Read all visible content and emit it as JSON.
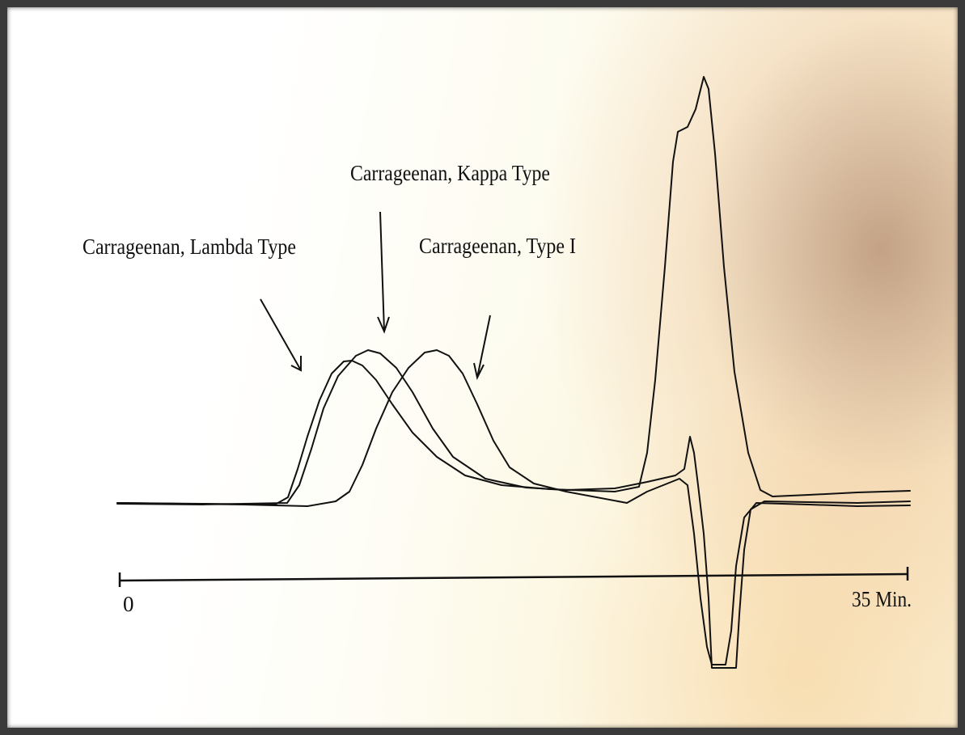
{
  "annotations": [
    "Carrageenan, Lambda Type",
    "Carrageenan, Kappa Type",
    "Carrageenan, Type I"
  ],
  "axis": {
    "start_label": "0",
    "end_label": "35 Min."
  }
}
